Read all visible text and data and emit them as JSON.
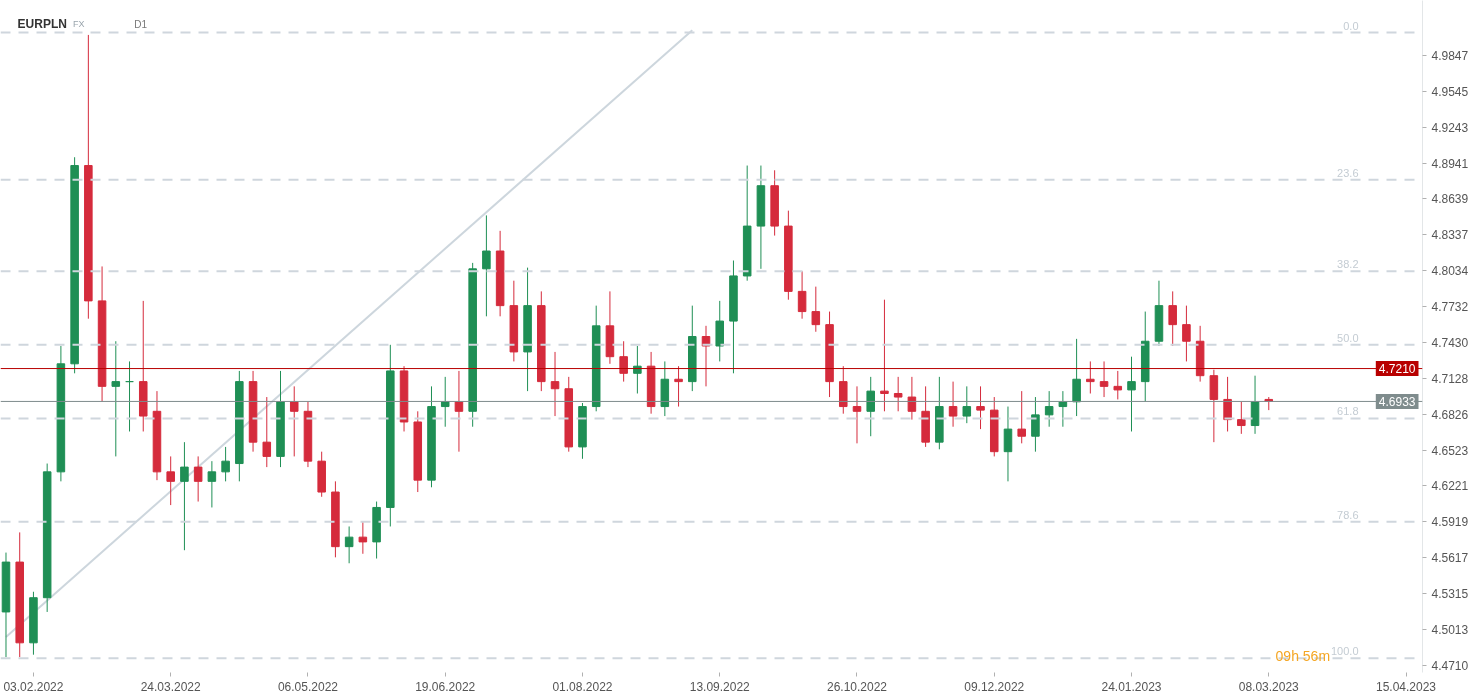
{
  "chart_data": {
    "type": "candlestick",
    "title": "EURPLN",
    "subtitle": "FX",
    "categories": [
      null,
      null,
      "03.02.2022",
      null,
      null,
      null,
      null,
      null,
      null,
      null,
      null,
      null,
      "24.03.2022",
      null,
      null,
      null,
      null,
      null,
      null,
      null,
      null,
      null,
      "06.05.2022",
      null,
      null,
      null,
      null,
      null,
      null,
      null,
      null,
      null,
      "19.06.2022",
      null,
      null,
      null,
      null,
      null,
      null,
      null,
      null,
      null,
      "01.08.2022",
      null,
      null,
      null,
      null,
      null,
      null,
      null,
      null,
      null,
      "13.09.2022",
      null,
      null,
      null,
      null,
      null,
      null,
      null,
      null,
      null,
      "26.10.2022",
      null,
      null,
      null,
      null,
      null,
      null,
      null,
      null,
      null,
      "09.12.2022",
      null,
      null,
      null,
      null,
      null,
      null,
      null,
      null,
      null,
      "24.01.2023",
      null,
      null,
      null,
      null,
      null,
      null,
      null,
      null,
      null,
      "08.03.2023",
      null,
      null,
      null,
      null,
      null,
      null,
      null,
      null,
      null,
      "15.04.2023",
      null
    ],
    "ohlc": [
      [
        4.516,
        4.566,
        4.478,
        4.558
      ],
      [
        4.558,
        4.583,
        4.478,
        4.49
      ],
      [
        4.49,
        4.533,
        4.48,
        4.528
      ],
      [
        4.528,
        4.641,
        4.516,
        4.634
      ],
      [
        4.634,
        4.74,
        4.626,
        4.725
      ],
      [
        4.725,
        4.899,
        4.717,
        4.892
      ],
      [
        4.892,
        5.002,
        4.763,
        4.778
      ],
      [
        4.778,
        4.807,
        4.693,
        4.706
      ],
      [
        4.706,
        4.744,
        4.647,
        4.71
      ],
      [
        4.71,
        4.727,
        4.668,
        4.71
      ],
      [
        4.71,
        4.778,
        4.668,
        4.681
      ],
      [
        4.685,
        4.702,
        4.627,
        4.634
      ],
      [
        4.634,
        4.647,
        4.606,
        4.626
      ],
      [
        4.626,
        4.659,
        4.568,
        4.638
      ],
      [
        4.638,
        4.647,
        4.609,
        4.626
      ],
      [
        4.626,
        4.643,
        4.604,
        4.634
      ],
      [
        4.634,
        4.655,
        4.626,
        4.643
      ],
      [
        4.641,
        4.719,
        4.626,
        4.71
      ],
      [
        4.71,
        4.719,
        4.651,
        4.659
      ],
      [
        4.659,
        4.697,
        4.638,
        4.647
      ],
      [
        4.647,
        4.719,
        4.638,
        4.693
      ],
      [
        4.693,
        4.706,
        4.647,
        4.685
      ],
      [
        4.685,
        4.693,
        4.638,
        4.643
      ],
      [
        4.643,
        4.651,
        4.613,
        4.617
      ],
      [
        4.617,
        4.626,
        4.562,
        4.571
      ],
      [
        4.571,
        4.588,
        4.557,
        4.579
      ],
      [
        4.579,
        4.592,
        4.565,
        4.575
      ],
      [
        4.575,
        4.609,
        4.561,
        4.604
      ],
      [
        4.604,
        4.741,
        4.588,
        4.719
      ],
      [
        4.719,
        4.723,
        4.668,
        4.676
      ],
      [
        4.676,
        4.685,
        4.617,
        4.627
      ],
      [
        4.627,
        4.706,
        4.621,
        4.689
      ],
      [
        4.689,
        4.714,
        4.672,
        4.693
      ],
      [
        4.693,
        4.719,
        4.651,
        4.685
      ],
      [
        4.685,
        4.81,
        4.672,
        4.805
      ],
      [
        4.805,
        4.85,
        4.765,
        4.82
      ],
      [
        4.82,
        4.837,
        4.765,
        4.774
      ],
      [
        4.774,
        4.795,
        4.727,
        4.735
      ],
      [
        4.735,
        4.806,
        4.702,
        4.774
      ],
      [
        4.774,
        4.786,
        4.702,
        4.71
      ],
      [
        4.71,
        4.735,
        4.681,
        4.704
      ],
      [
        4.704,
        4.714,
        4.651,
        4.655
      ],
      [
        4.655,
        4.692,
        4.645,
        4.689
      ],
      [
        4.689,
        4.774,
        4.685,
        4.757
      ],
      [
        4.757,
        4.786,
        4.725,
        4.731
      ],
      [
        4.731,
        4.744,
        4.71,
        4.717
      ],
      [
        4.717,
        4.74,
        4.7,
        4.723
      ],
      [
        4.723,
        4.735,
        4.683,
        4.689
      ],
      [
        4.689,
        4.727,
        4.681,
        4.712
      ],
      [
        4.712,
        4.723,
        4.689,
        4.71
      ],
      [
        4.71,
        4.774,
        4.702,
        4.748
      ],
      [
        4.748,
        4.757,
        4.706,
        4.74
      ],
      [
        4.74,
        4.778,
        4.727,
        4.761
      ],
      [
        4.761,
        4.812,
        4.717,
        4.799
      ],
      [
        4.799,
        4.892,
        4.795,
        4.841
      ],
      [
        4.841,
        4.892,
        4.805,
        4.875
      ],
      [
        4.875,
        4.888,
        4.833,
        4.841
      ],
      [
        4.841,
        4.854,
        4.779,
        4.786
      ],
      [
        4.786,
        4.803,
        4.763,
        4.769
      ],
      [
        4.769,
        4.79,
        4.752,
        4.758
      ],
      [
        4.758,
        4.769,
        4.697,
        4.71
      ],
      [
        4.71,
        4.723,
        4.683,
        4.689
      ],
      [
        4.689,
        4.706,
        4.658,
        4.685
      ],
      [
        4.685,
        4.714,
        4.664,
        4.702
      ],
      [
        4.702,
        4.779,
        4.685,
        4.7
      ],
      [
        4.7,
        4.714,
        4.685,
        4.697
      ],
      [
        4.697,
        4.714,
        4.678,
        4.685
      ],
      [
        4.685,
        4.706,
        4.655,
        4.659
      ],
      [
        4.659,
        4.714,
        4.653,
        4.689
      ],
      [
        4.689,
        4.71,
        4.672,
        4.681
      ],
      [
        4.681,
        4.706,
        4.675,
        4.689
      ],
      [
        4.689,
        4.706,
        4.67,
        4.686
      ],
      [
        4.686,
        4.697,
        4.647,
        4.651
      ],
      [
        4.651,
        4.689,
        4.626,
        4.67
      ],
      [
        4.67,
        4.702,
        4.658,
        4.664
      ],
      [
        4.664,
        4.697,
        4.651,
        4.682
      ],
      [
        4.682,
        4.702,
        4.672,
        4.689
      ],
      [
        4.689,
        4.702,
        4.672,
        4.693
      ],
      [
        4.693,
        4.746,
        4.681,
        4.712
      ],
      [
        4.712,
        4.727,
        4.7,
        4.71
      ],
      [
        4.71,
        4.727,
        4.697,
        4.706
      ],
      [
        4.706,
        4.719,
        4.695,
        4.703
      ],
      [
        4.703,
        4.731,
        4.668,
        4.71
      ],
      [
        4.71,
        4.769,
        4.693,
        4.744
      ],
      [
        4.744,
        4.795,
        4.74,
        4.774
      ],
      [
        4.774,
        4.786,
        4.74,
        4.758
      ],
      [
        4.758,
        4.774,
        4.727,
        4.744
      ],
      [
        4.744,
        4.757,
        4.71,
        4.715
      ],
      [
        4.715,
        4.72,
        4.659,
        4.695
      ],
      [
        4.695,
        4.714,
        4.668,
        4.678
      ],
      [
        4.678,
        4.693,
        4.666,
        4.673
      ],
      [
        4.673,
        4.715,
        4.666,
        4.693
      ],
      [
        4.695,
        4.697,
        4.686,
        4.6933
      ],
      null,
      null,
      null,
      null,
      null,
      null,
      null,
      null,
      null,
      null,
      null
    ],
    "colors": [
      "#1f8f55",
      "#d52b3c",
      "#1f8f55",
      "#1f8f55",
      "#1f8f55",
      "#1f8f55",
      "#d52b3c",
      "#d52b3c",
      "#1f8f55",
      "#1f8f55",
      "#d52b3c",
      "#d52b3c",
      "#d52b3c",
      "#1f8f55",
      "#d52b3c",
      "#1f8f55",
      "#1f8f55",
      "#1f8f55",
      "#d52b3c",
      "#d52b3c",
      "#1f8f55",
      "#d52b3c",
      "#d52b3c",
      "#d52b3c",
      "#d52b3c",
      "#1f8f55",
      "#d52b3c",
      "#1f8f55",
      "#1f8f55",
      "#d52b3c",
      "#d52b3c",
      "#1f8f55",
      "#1f8f55",
      "#d52b3c",
      "#1f8f55",
      "#1f8f55",
      "#d52b3c",
      "#d52b3c",
      "#1f8f55",
      "#d52b3c",
      "#d52b3c",
      "#d52b3c",
      "#1f8f55",
      "#1f8f55",
      "#d52b3c",
      "#d52b3c",
      "#1f8f55",
      "#d52b3c",
      "#1f8f55",
      "#d52b3c",
      "#1f8f55",
      "#d52b3c",
      "#1f8f55",
      "#1f8f55",
      "#1f8f55",
      "#1f8f55",
      "#d52b3c",
      "#d52b3c",
      "#d52b3c",
      "#d52b3c",
      "#d52b3c",
      "#d52b3c",
      "#d52b3c",
      "#1f8f55",
      "#d52b3c",
      "#d52b3c",
      "#d52b3c",
      "#d52b3c",
      "#1f8f55",
      "#d52b3c",
      "#1f8f55",
      "#d52b3c",
      "#d52b3c",
      "#1f8f55",
      "#d52b3c",
      "#1f8f55",
      "#1f8f55",
      "#1f8f55",
      "#1f8f55",
      "#d52b3c",
      "#d52b3c",
      "#d52b3c",
      "#1f8f55",
      "#1f8f55",
      "#1f8f55",
      "#d52b3c",
      "#d52b3c",
      "#d52b3c",
      "#d52b3c",
      "#d52b3c",
      "#d52b3c",
      "#1f8f55",
      "#d52b3c",
      null,
      null,
      null,
      null,
      null,
      null,
      null,
      null,
      null,
      null,
      null
    ],
    "ylim": [
      4.465,
      5.031
    ],
    "yticks": [
      {
        "value": 4.471,
        "label": "4.4710"
      },
      {
        "value": 4.5013,
        "label": "4.5013"
      },
      {
        "value": 4.5315,
        "label": "4.5315"
      },
      {
        "value": 4.5617,
        "label": "4.5617"
      },
      {
        "value": 4.5919,
        "label": "4.5919"
      },
      {
        "value": 4.6221,
        "label": "4.6221"
      },
      {
        "value": 4.6523,
        "label": "4.6523"
      },
      {
        "value": 4.6826,
        "label": "4.6826"
      },
      {
        "value": 4.7128,
        "label": "4.7128"
      },
      {
        "value": 4.743,
        "label": "4.7430"
      },
      {
        "value": 4.7732,
        "label": "4.7732"
      },
      {
        "value": 4.8034,
        "label": "4.8034"
      },
      {
        "value": 4.8337,
        "label": "4.8337"
      },
      {
        "value": 4.8639,
        "label": "4.8639"
      },
      {
        "value": 4.8941,
        "label": "4.8941"
      },
      {
        "value": 4.9243,
        "label": "4.9243"
      },
      {
        "value": 4.9545,
        "label": "4.9545"
      },
      {
        "value": 4.9847,
        "label": "4.9847"
      }
    ],
    "series": [
      {
        "type": "line",
        "values": [
          4.495,
          null,
          null,
          null,
          null,
          null,
          null,
          null,
          null,
          null,
          null,
          null,
          null,
          null,
          null,
          null,
          null,
          null,
          null,
          null,
          null,
          null,
          null,
          null,
          null,
          null,
          null,
          null,
          null,
          null,
          null,
          null,
          null,
          null,
          null,
          null,
          null,
          null,
          null,
          null,
          null,
          null,
          null,
          null,
          null,
          null,
          null,
          null,
          null,
          null,
          5.006,
          null,
          null,
          null,
          null,
          null,
          null,
          null,
          null,
          null,
          null,
          null,
          null,
          null,
          null,
          null,
          null,
          null,
          null,
          null,
          null,
          null,
          null,
          null,
          null,
          null,
          null,
          null,
          null,
          null,
          null,
          null,
          null,
          null,
          null,
          null,
          null,
          null,
          null,
          null,
          null,
          null,
          null,
          null,
          null,
          null,
          null,
          null,
          null,
          null,
          null,
          null,
          null,
          null
        ],
        "color": "#cdd6dd"
      }
    ],
    "ref_lines": [
      {
        "axis": "y",
        "value": 5.004,
        "color": "#cfd6dd",
        "line_style": "dashed"
      },
      {
        "axis": "y",
        "value": 4.88,
        "color": "#cfd6dd",
        "line_style": "dashed"
      },
      {
        "axis": "y",
        "value": 4.803,
        "color": "#cfd6dd",
        "line_style": "dashed"
      },
      {
        "axis": "y",
        "value": 4.741,
        "color": "#cfd6dd",
        "line_style": "dashed"
      },
      {
        "axis": "y",
        "value": 4.679,
        "color": "#cfd6dd",
        "line_style": "dashed"
      },
      {
        "axis": "y",
        "value": 4.592,
        "color": "#cfd6dd",
        "line_style": "dashed"
      },
      {
        "axis": "y",
        "value": 4.477,
        "color": "#cfd6dd",
        "line_style": "dashed"
      },
      {
        "axis": "y",
        "value": 4.721,
        "label": "4.7210",
        "color": "#b80000",
        "line_style": "solid"
      },
      {
        "axis": "y",
        "value": 4.6933,
        "label": "4.6933",
        "color": "#7f8c8d",
        "line_style": "solid"
      }
    ],
    "annotations": [
      "D1",
      "09h 56m",
      {
        "text": "0.0",
        "y": 5.004
      },
      {
        "text": "23.6",
        "y": 4.88
      },
      {
        "text": "38.2",
        "y": 4.803
      },
      {
        "text": "50.0",
        "y": 4.741
      },
      {
        "text": "61.8",
        "y": 4.679
      },
      {
        "text": "78.6",
        "y": 4.592
      },
      {
        "text": "100.0",
        "y": 4.477
      }
    ],
    "grid": false
  }
}
